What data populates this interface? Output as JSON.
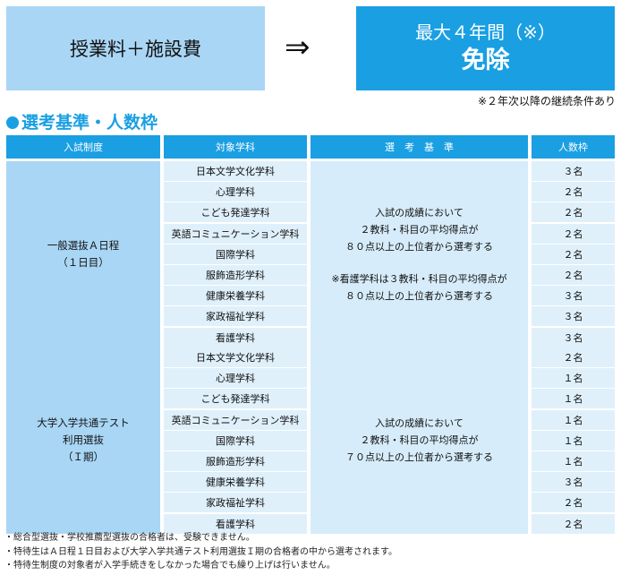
{
  "banner": {
    "left_text": "授業料＋施設費",
    "arrow": "⇒",
    "right_line1": "最大４年間（※）",
    "right_line2": "免除",
    "note": "※２年次以降の継続条件あり"
  },
  "section_title": "選考基準・人数枠",
  "table": {
    "headers": [
      "入試制度",
      "対象学科",
      "選　考　基　準",
      "人数枠"
    ],
    "groups": [
      {
        "name_line1": "一般選抜Ａ日程",
        "name_line2": "（１日目）",
        "name_line3": "",
        "criteria": [
          "入試の成績において",
          "２教科・科目の平均得点が",
          "８０点以上の上位者から選考する",
          "※看護学科は３教科・科目の平均得点が",
          "８０点以上の上位者から選考する"
        ],
        "rows": [
          {
            "dept": "日本文学文化学科",
            "quota": "３名"
          },
          {
            "dept": "心理学科",
            "quota": "２名"
          },
          {
            "dept": "こども発達学科",
            "quota": "２名"
          },
          {
            "dept": "英語コミュニケーション学科",
            "quota": "２名"
          },
          {
            "dept": "国際学科",
            "quota": "２名"
          },
          {
            "dept": "服飾造形学科",
            "quota": "２名"
          },
          {
            "dept": "健康栄養学科",
            "quota": "３名"
          },
          {
            "dept": "家政福祉学科",
            "quota": "３名"
          },
          {
            "dept": "看護学科",
            "quota": "３名"
          }
        ]
      },
      {
        "name_line1": "大学入学共通テスト",
        "name_line2": "利用選抜",
        "name_line3": "（Ｉ期）",
        "criteria": [
          "入試の成績において",
          "２教科・科目の平均得点が",
          "７０点以上の上位者から選考する"
        ],
        "rows": [
          {
            "dept": "日本文学文化学科",
            "quota": "２名"
          },
          {
            "dept": "心理学科",
            "quota": "１名"
          },
          {
            "dept": "こども発達学科",
            "quota": "１名"
          },
          {
            "dept": "英語コミュニケーション学科",
            "quota": "１名"
          },
          {
            "dept": "国際学科",
            "quota": "１名"
          },
          {
            "dept": "服飾造形学科",
            "quota": "１名"
          },
          {
            "dept": "健康栄養学科",
            "quota": "３名"
          },
          {
            "dept": "家政福祉学科",
            "quota": "２名"
          },
          {
            "dept": "看護学科",
            "quota": "２名"
          }
        ]
      }
    ]
  },
  "footnotes": [
    "・総合型選抜・学校推薦型選抜の合格者は、受験できません。",
    "・特待生はＡ日程１日目および大学入学共通テスト利用選抜Ｉ期の合格者の中から選考されます。",
    "・特待生制度の対象者が入学手続きをしなかった場合でも繰り上げは行いません。"
  ]
}
